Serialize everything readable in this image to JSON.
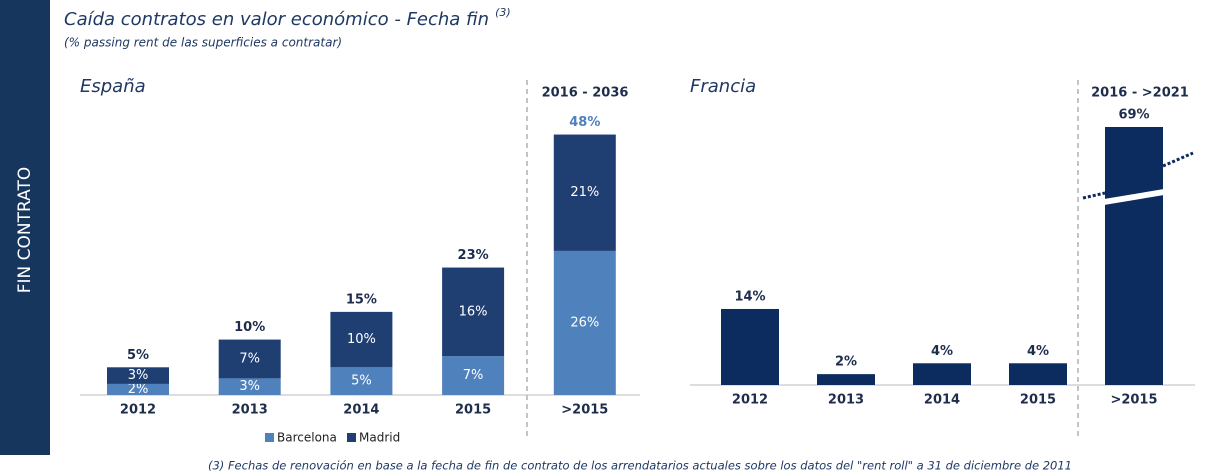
{
  "sidebar": "FIN CONTRATO",
  "title": "Caída contratos en valor económico - Fecha fin",
  "title_note": "(3)",
  "subtitle": "(% passing rent de las superficies a contratar)",
  "footnote": "(3) Fechas de renovación en base a la fecha de fin de contrato de los arrendatarios actuales sobre los datos del \"rent roll\" a 31 de diciembre de 2011",
  "chart_data": [
    {
      "type": "stacked_bar",
      "title": "España",
      "period_label": "2016 - 2036",
      "categories": [
        "2012",
        "2013",
        "2014",
        "2015",
        ">2015"
      ],
      "series": [
        {
          "name": "Barcelona",
          "color": "#4f81bd",
          "values": [
            2,
            3,
            5,
            7,
            26
          ],
          "value_labels": [
            "2%",
            "3%",
            "5%",
            "7%",
            "26%"
          ]
        },
        {
          "name": "Madrid",
          "color": "#1f3f73",
          "values": [
            3,
            7,
            10,
            16,
            21
          ],
          "value_labels": [
            "3%",
            "7%",
            "10%",
            "16%",
            "21%"
          ]
        }
      ],
      "totals": [
        5,
        10,
        15,
        23,
        48
      ],
      "total_labels": [
        "5%",
        "10%",
        "15%",
        "23%",
        "48%"
      ]
    },
    {
      "type": "bar",
      "title": "Francia",
      "period_label": "2016 - >2021",
      "categories": [
        "2012",
        "2013",
        "2014",
        "2015",
        ">2015"
      ],
      "values": [
        14,
        2,
        4,
        4,
        69
      ],
      "value_labels": [
        "14%",
        "2%",
        "4%",
        "4%",
        "69%"
      ],
      "color": "#0c2b5e",
      "axis_break": true
    }
  ]
}
